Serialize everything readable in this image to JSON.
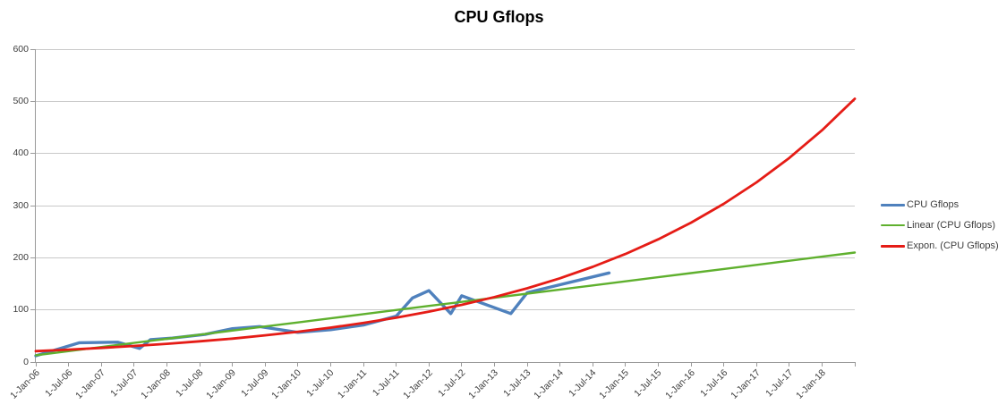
{
  "title": "CPU Gflops",
  "legend": {
    "position": "right",
    "entries": [
      {
        "label": "CPU Gflops",
        "color": "#4f81bd"
      },
      {
        "label": "Linear (CPU Gflops)",
        "color": "#5fb02e"
      },
      {
        "label": "Expon. (CPU Gflops)",
        "color": "#e51c16"
      }
    ]
  },
  "chart_data": {
    "type": "line",
    "title": "CPU Gflops",
    "grid": "horizontal-only",
    "legend_position": "right",
    "x_axis": {
      "kind": "date",
      "unit_note": "positions are months since 1-Jan-06",
      "tick_step_months": 6,
      "tick_labels": [
        "1-Jan-06",
        "1-Jul-06",
        "1-Jan-07",
        "1-Jul-07",
        "1-Jan-08",
        "1-Jul-08",
        "1-Jan-09",
        "1-Jul-09",
        "1-Jan-10",
        "1-Jul-10",
        "1-Jan-11",
        "1-Jul-11",
        "1-Jan-12",
        "1-Jul-12",
        "1-Jan-13",
        "1-Jul-13",
        "1-Jan-14",
        "1-Jul-14",
        "1-Jan-15",
        "1-Jul-15",
        "1-Jan-16",
        "1-Jul-16",
        "1-Jan-17",
        "1-Jul-17",
        "1-Jan-18"
      ],
      "tick_positions_months": [
        0,
        6,
        12,
        18,
        24,
        30,
        36,
        42,
        48,
        54,
        60,
        66,
        72,
        78,
        84,
        90,
        96,
        102,
        108,
        114,
        120,
        126,
        132,
        138,
        144
      ],
      "axis_end_months": 150,
      "label_rotation_deg": -45
    },
    "y_axis": {
      "min": 0,
      "max": 600,
      "ticks": [
        0,
        100,
        200,
        300,
        400,
        500,
        600
      ]
    },
    "series": [
      {
        "name": "CPU Gflops",
        "role": "data",
        "color": "#4f81bd",
        "stroke_width": 3.4,
        "points_months_value": [
          [
            0,
            12
          ],
          [
            8,
            37
          ],
          [
            15,
            38
          ],
          [
            19,
            26
          ],
          [
            21,
            43
          ],
          [
            25,
            46
          ],
          [
            31,
            53
          ],
          [
            36,
            64
          ],
          [
            41,
            68
          ],
          [
            48,
            57
          ],
          [
            54,
            62
          ],
          [
            60,
            71
          ],
          [
            66,
            88
          ],
          [
            69,
            123
          ],
          [
            72,
            137
          ],
          [
            76,
            93
          ],
          [
            78,
            127
          ],
          [
            87,
            93
          ],
          [
            90,
            133
          ],
          [
            105,
            171
          ]
        ]
      },
      {
        "name": "Linear (CPU Gflops)",
        "role": "linear-trendline",
        "color": "#5fb02e",
        "stroke_width": 2.4,
        "x_months": [
          0,
          6,
          12,
          18,
          24,
          30,
          36,
          42,
          48,
          54,
          60,
          66,
          72,
          78,
          84,
          90,
          96,
          102,
          108,
          114,
          120,
          126,
          132,
          138,
          144,
          150
        ],
        "values": [
          13,
          20.9,
          28.8,
          36.6,
          44.5,
          52.4,
          60.3,
          68.2,
          76,
          83.9,
          91.8,
          99.7,
          107.6,
          115.4,
          123.3,
          131.2,
          139.1,
          147,
          154.8,
          162.7,
          170.6,
          178.5,
          186.4,
          194.2,
          202.1,
          210
        ]
      },
      {
        "name": "Expon. (CPU Gflops)",
        "role": "exponential-trendline",
        "color": "#e51c16",
        "stroke_width": 2.8,
        "x_months": [
          0,
          6,
          12,
          18,
          24,
          30,
          36,
          42,
          48,
          54,
          60,
          66,
          72,
          78,
          84,
          90,
          96,
          102,
          108,
          114,
          120,
          126,
          132,
          138,
          144,
          150
        ],
        "values": [
          21,
          23.9,
          27.1,
          30.8,
          34.9,
          39.7,
          45,
          51.2,
          58.1,
          66,
          74.9,
          85.1,
          96.6,
          109.7,
          124.6,
          141.5,
          160.7,
          182.5,
          207.2,
          235.3,
          267.2,
          303.5,
          344.6,
          391.4,
          444.5,
          504.8
        ]
      }
    ]
  }
}
